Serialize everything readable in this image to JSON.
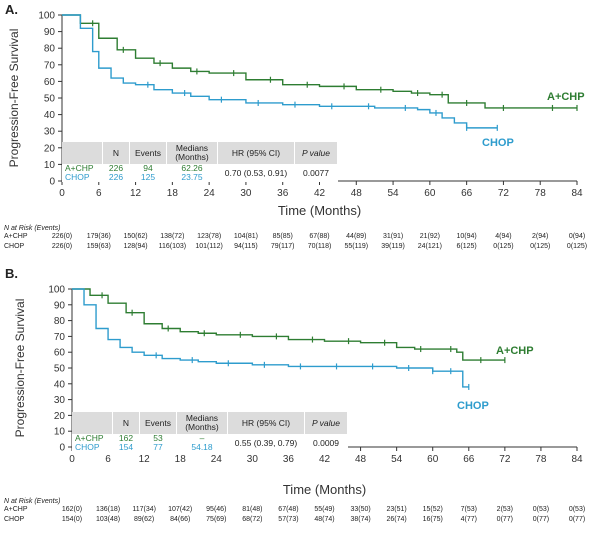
{
  "colors": {
    "aplus": "#2e7d32",
    "chop": "#2e9ccd",
    "axis": "#333333",
    "table_header": "#dcdcdc"
  },
  "chart_data": [
    {
      "type": "line",
      "panel": "A.",
      "xlabel": "Time (Months)",
      "ylabel": "Progression-Free Survival",
      "xlim": [
        0,
        84
      ],
      "ylim": [
        0,
        100
      ],
      "xticks": [
        0,
        6,
        12,
        18,
        24,
        30,
        36,
        42,
        48,
        54,
        60,
        66,
        72,
        78,
        84
      ],
      "yticks": [
        0,
        10,
        20,
        30,
        40,
        50,
        60,
        70,
        80,
        90,
        100
      ],
      "series": [
        {
          "name": "A+CHP",
          "label": "A+CHP",
          "x": [
            0,
            3,
            6,
            9,
            12,
            15,
            18,
            21,
            24,
            30,
            36,
            42,
            48,
            54,
            57,
            60,
            63,
            66,
            69,
            72,
            84
          ],
          "y": [
            100,
            95,
            86,
            79,
            74,
            71,
            68,
            66,
            65,
            61,
            58,
            57,
            55,
            54,
            53,
            52,
            47,
            47,
            44,
            44,
            44
          ],
          "censor_x": [
            5,
            10,
            16,
            22,
            28,
            34,
            40,
            46,
            52,
            58,
            62,
            66,
            72,
            80,
            84
          ]
        },
        {
          "name": "CHOP",
          "label": "CHOP",
          "x": [
            0,
            3,
            5,
            6,
            8,
            10,
            12,
            15,
            18,
            21,
            24,
            30,
            36,
            42,
            48,
            51,
            54,
            58,
            60,
            62,
            64,
            66,
            67,
            71
          ],
          "y": [
            100,
            92,
            78,
            68,
            62,
            59,
            58,
            55,
            53,
            51,
            49,
            47,
            46,
            45,
            45,
            44,
            44,
            43,
            41,
            38,
            35,
            32,
            32,
            32
          ],
          "censor_x": [
            14,
            20,
            26,
            32,
            38,
            44,
            50,
            56,
            61,
            66,
            71
          ]
        }
      ],
      "table": {
        "headers": [
          "",
          "N",
          "Events",
          "Medians (Months)",
          "HR (95% CI)",
          "P value"
        ],
        "rows": [
          [
            "A+CHP",
            "226",
            "94",
            "62.26",
            "0.70 (0.53, 0.91)",
            "0.0077"
          ],
          [
            "CHOP",
            "226",
            "125",
            "23.75",
            "",
            ""
          ]
        ]
      },
      "risk": {
        "title": "N at Risk (Events)",
        "rows": [
          {
            "name": "A+CHP",
            "values": [
              "226(0)",
              "179(36)",
              "150(62)",
              "138(72)",
              "123(78)",
              "104(81)",
              "85(85)",
              "67(88)",
              "44(89)",
              "31(91)",
              "21(92)",
              "10(94)",
              "4(94)",
              "2(94)",
              "0(94)"
            ]
          },
          {
            "name": "CHOP",
            "values": [
              "226(0)",
              "159(63)",
              "128(94)",
              "116(103)",
              "101(112)",
              "94(115)",
              "79(117)",
              "70(118)",
              "55(119)",
              "39(119)",
              "24(121)",
              "6(125)",
              "0(125)",
              "0(125)",
              "0(125)"
            ]
          }
        ]
      }
    },
    {
      "type": "line",
      "panel": "B.",
      "xlabel": "Time (Months)",
      "ylabel": "Progression-Free Survival",
      "xlim": [
        0,
        84
      ],
      "ylim": [
        0,
        100
      ],
      "xticks": [
        0,
        6,
        12,
        18,
        24,
        30,
        36,
        42,
        48,
        54,
        60,
        66,
        72,
        78,
        84
      ],
      "yticks": [
        0,
        10,
        20,
        30,
        40,
        50,
        60,
        70,
        80,
        90,
        100
      ],
      "series": [
        {
          "name": "A+CHP",
          "label": "A+CHP",
          "x": [
            0,
            3,
            6,
            9,
            12,
            15,
            18,
            21,
            24,
            30,
            36,
            42,
            48,
            54,
            57,
            60,
            64,
            65,
            72
          ],
          "y": [
            100,
            96,
            91,
            85,
            78,
            75,
            73,
            72,
            71,
            70,
            68,
            67,
            66,
            63,
            62,
            62,
            60,
            55,
            55
          ],
          "censor_x": [
            5,
            10,
            16,
            22,
            28,
            34,
            40,
            46,
            52,
            58,
            63,
            68,
            72
          ]
        },
        {
          "name": "CHOP",
          "label": "CHOP",
          "x": [
            0,
            2,
            4,
            6,
            8,
            10,
            12,
            15,
            18,
            21,
            24,
            30,
            36,
            42,
            48,
            54,
            58,
            60,
            64,
            65,
            66
          ],
          "y": [
            100,
            90,
            75,
            68,
            63,
            60,
            58,
            56,
            55,
            54,
            53,
            52,
            51,
            51,
            51,
            50,
            50,
            48,
            48,
            38,
            38
          ],
          "censor_x": [
            14,
            20,
            26,
            32,
            38,
            44,
            50,
            56,
            60,
            63,
            66
          ]
        }
      ],
      "table": {
        "headers": [
          "",
          "N",
          "Events",
          "Medians (Months)",
          "HR (95% CI)",
          "P value"
        ],
        "rows": [
          [
            "A+CHP",
            "162",
            "53",
            "–",
            "0.55 (0.39, 0.79)",
            "0.0009"
          ],
          [
            "CHOP",
            "154",
            "77",
            "54.18",
            "",
            ""
          ]
        ]
      },
      "risk": {
        "title": "N at Risk (Events)",
        "rows": [
          {
            "name": "A+CHP",
            "values": [
              "162(0)",
              "136(18)",
              "117(34)",
              "107(42)",
              "95(46)",
              "81(48)",
              "67(48)",
              "55(49)",
              "33(50)",
              "23(51)",
              "15(52)",
              "7(53)",
              "2(53)",
              "0(53)",
              "0(53)"
            ]
          },
          {
            "name": "CHOP",
            "values": [
              "154(0)",
              "103(48)",
              "89(62)",
              "84(66)",
              "75(69)",
              "68(72)",
              "57(73)",
              "48(74)",
              "38(74)",
              "26(74)",
              "16(75)",
              "4(77)",
              "0(77)",
              "0(77)",
              "0(77)"
            ]
          }
        ]
      }
    }
  ]
}
